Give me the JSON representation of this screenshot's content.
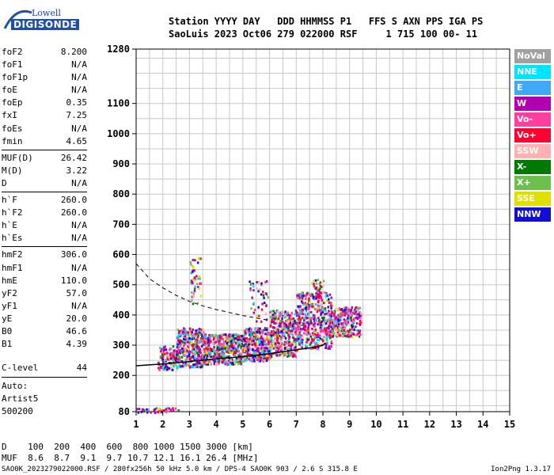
{
  "logo": {
    "top": "Lowell",
    "bottom": "DIGISONDE"
  },
  "header": {
    "line1": "Station YYYY DAY   DDD HHMMSS P1   FFS S AXN PPS IGA PS",
    "line2": "SaoLuis 2023 Oct06 279 022000 RSF     1 715 100 00- 11"
  },
  "params": [
    [
      {
        "name": "foF2",
        "value": "8.200"
      },
      {
        "name": "foF1",
        "value": "N/A"
      },
      {
        "name": "foF1p",
        "value": "N/A"
      },
      {
        "name": "foE",
        "value": "N/A"
      },
      {
        "name": "foEp",
        "value": "0.35"
      },
      {
        "name": "fxI",
        "value": "7.25"
      },
      {
        "name": "foEs",
        "value": "N/A"
      },
      {
        "name": "fmin",
        "value": "4.65"
      }
    ],
    [
      {
        "name": "MUF(D)",
        "value": "26.42"
      },
      {
        "name": "M(D)",
        "value": "3.22"
      },
      {
        "name": "D",
        "value": "N/A"
      }
    ],
    [
      {
        "name": "h`F",
        "value": "260.0"
      },
      {
        "name": "h`F2",
        "value": "260.0"
      },
      {
        "name": "h`E",
        "value": "N/A"
      },
      {
        "name": "h`Es",
        "value": "N/A"
      }
    ],
    [
      {
        "name": "hmF2",
        "value": "306.0"
      },
      {
        "name": "hmF1",
        "value": "N/A"
      },
      {
        "name": "hmE",
        "value": "110.0"
      },
      {
        "name": "yF2",
        "value": "57.0"
      },
      {
        "name": "yF1",
        "value": "N/A"
      },
      {
        "name": "yE",
        "value": "20.0"
      },
      {
        "name": "B0",
        "value": "46.6"
      },
      {
        "name": "B1",
        "value": "4.39"
      }
    ]
  ],
  "clevel": {
    "name": "C-level",
    "value": "44"
  },
  "auto": {
    "line1": "Auto:",
    "line2": "Artist5",
    "line3": "500200"
  },
  "legend": [
    {
      "label": "NoVal",
      "color": "#a0a0a0"
    },
    {
      "label": "NNE",
      "color": "#00e5ff"
    },
    {
      "label": "E",
      "color": "#3fa9f5"
    },
    {
      "label": "W",
      "color": "#b000b0"
    },
    {
      "label": "Vo-",
      "color": "#ff3fa0"
    },
    {
      "label": "Vo+",
      "color": "#ff0030"
    },
    {
      "label": "SSW",
      "color": "#ffb0b0"
    },
    {
      "label": "X-",
      "color": "#007a00"
    },
    {
      "label": "X+",
      "color": "#6fbf4f"
    },
    {
      "label": "SSE",
      "color": "#e0e000"
    },
    {
      "label": "NNW",
      "color": "#1010d0"
    }
  ],
  "chart_data": {
    "type": "scatter",
    "xlim": [
      1,
      15
    ],
    "ylim": [
      80,
      1280
    ],
    "x_ticks": [
      "1",
      "2",
      "3",
      "4",
      "5",
      "6",
      "7",
      "8",
      "9",
      "10",
      "11",
      "12",
      "13",
      "14",
      "15"
    ],
    "y_ticks": [
      "80",
      "200",
      "300",
      "400",
      "500",
      "600",
      "700",
      "800",
      "900",
      "1000",
      "1100",
      "1280"
    ],
    "grid": true,
    "profile_curve": [
      [
        1.0,
        232
      ],
      [
        2.0,
        238
      ],
      [
        3.0,
        246
      ],
      [
        4.0,
        255
      ],
      [
        5.0,
        262
      ],
      [
        6.0,
        272
      ],
      [
        7.0,
        285
      ],
      [
        7.6,
        292
      ],
      [
        8.0,
        300
      ],
      [
        8.1,
        308
      ]
    ],
    "dashed_curve": [
      [
        1.0,
        570
      ],
      [
        1.5,
        520
      ],
      [
        2.0,
        490
      ],
      [
        2.5,
        465
      ],
      [
        3.0,
        445
      ],
      [
        3.5,
        430
      ],
      [
        4.0,
        418
      ],
      [
        4.5,
        408
      ],
      [
        5.0,
        398
      ],
      [
        5.5,
        390
      ],
      [
        6.0,
        382
      ]
    ],
    "clusters": [
      {
        "x": [
          1.8,
          2.5
        ],
        "y": [
          220,
          300
        ],
        "n": 120
      },
      {
        "x": [
          2.5,
          3.5
        ],
        "y": [
          230,
          360
        ],
        "n": 350
      },
      {
        "x": [
          3.5,
          5.0
        ],
        "y": [
          240,
          340
        ],
        "n": 500
      },
      {
        "x": [
          5.0,
          6.0
        ],
        "y": [
          250,
          360
        ],
        "n": 350
      },
      {
        "x": [
          6.0,
          7.0
        ],
        "y": [
          265,
          420
        ],
        "n": 350
      },
      {
        "x": [
          7.0,
          8.3
        ],
        "y": [
          290,
          480
        ],
        "n": 450
      },
      {
        "x": [
          8.3,
          9.4
        ],
        "y": [
          330,
          430
        ],
        "n": 250
      },
      {
        "x": [
          3.0,
          3.4
        ],
        "y": [
          440,
          600
        ],
        "n": 45
      },
      {
        "x": [
          5.2,
          6.0
        ],
        "y": [
          380,
          520
        ],
        "n": 45
      },
      {
        "x": [
          7.5,
          8.0
        ],
        "y": [
          460,
          520
        ],
        "n": 30
      },
      {
        "x": [
          1.0,
          2.6
        ],
        "y": [
          80,
          95
        ],
        "n": 40
      }
    ]
  },
  "footer": {
    "line1": "D    100  200  400  600  800 1000 1500 3000 [km]",
    "line2": "MUF  8.6  8.7  9.1  9.7 10.7 12.1 16.1 26.4 [MHz]",
    "bottom": "SAO0K_2023279022000.RSF / 280fx256h 50 kHz 5.0 km / DPS-4 SAO0K 903 / 2.6 S 315.8 E",
    "version": "Ion2Png 1.3.17"
  }
}
